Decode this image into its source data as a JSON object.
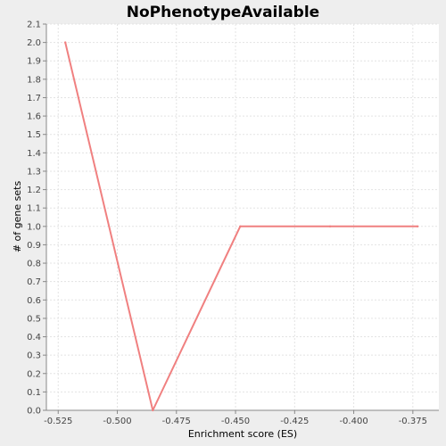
{
  "chart_data": {
    "type": "line",
    "title": "NoPhenotypeAvailable",
    "xlabel": "Enrichment score (ES)",
    "ylabel": "# of gene sets",
    "xlim": [
      -0.53,
      -0.364
    ],
    "ylim": [
      0.0,
      2.1
    ],
    "xticks": [
      -0.525,
      -0.5,
      -0.475,
      -0.45,
      -0.425,
      -0.4,
      -0.375
    ],
    "xtick_labels": [
      "-0.525",
      "-0.500",
      "-0.475",
      "-0.450",
      "-0.425",
      "-0.400",
      "-0.375"
    ],
    "yticks": [
      0.0,
      0.1,
      0.2,
      0.3,
      0.4,
      0.5,
      0.6,
      0.7,
      0.8,
      0.9,
      1.0,
      1.1,
      1.2,
      1.3,
      1.4,
      1.5,
      1.6,
      1.7,
      1.8,
      1.9,
      2.0,
      2.1
    ],
    "ytick_labels": [
      "0.0",
      "0.1",
      "0.2",
      "0.3",
      "0.4",
      "0.5",
      "0.6",
      "0.7",
      "0.8",
      "0.9",
      "1.0",
      "1.1",
      "1.2",
      "1.3",
      "1.4",
      "1.5",
      "1.6",
      "1.7",
      "1.8",
      "1.9",
      "2.0",
      "2.1"
    ],
    "grid": true,
    "series": [
      {
        "color": "#f08080",
        "x": [
          -0.522,
          -0.485,
          -0.448,
          -0.41,
          -0.373
        ],
        "y": [
          2.0,
          0.0,
          1.0,
          1.0,
          1.0
        ]
      }
    ]
  }
}
